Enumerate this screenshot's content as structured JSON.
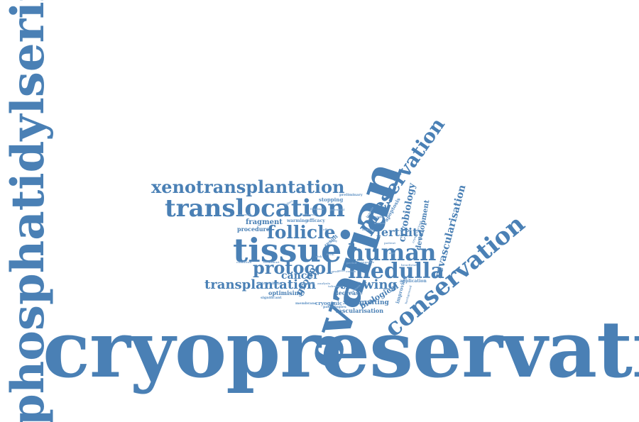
{
  "words": {
    "cryopreservation": "cryopreservation",
    "phosphatidylserine": "phosphatidylserine",
    "ovarian": "ovarian",
    "conservation": "conservation",
    "preservation": "preservation",
    "tissue": "tissue",
    "human": "human",
    "medulla": "medulla",
    "translocation": "translocation",
    "xenotransplantation": "xenotransplantation",
    "follicle": "follicle",
    "protocol": "protocol",
    "transplantation": "transplantation",
    "revascularisation": "revascularisation",
    "cryobiology": "cryobiology",
    "fertility": "fertility",
    "thawing": "thawing",
    "cancer": "cancer",
    "development": "development",
    "fragment": "fragment",
    "procedure": "procedure",
    "group": "group",
    "biological": "biological",
    "xenografting": "xenografting",
    "vascularisation": "vascularisation",
    "decrease": "decrease",
    "optimising": "optimising",
    "cryogenic": "cryogenic",
    "improving": "improving",
    "apoptosis": "apoptosis",
    "stopping": "stopping",
    "preliminary": "preliminary",
    "warming": "warming",
    "efficacy": "efficacy",
    "result": "result",
    "application": "application",
    "intracellular": "intracellular",
    "significant": "significant",
    "membrane": "membrane",
    "pathologies": "pathologies",
    "condition": "condition",
    "treatment": "treatment",
    "patient": "patient",
    "background": "background",
    "beneficial": "beneficial",
    "period": "period",
    "negative": "negative",
    "potential": "potential",
    "hypoxia": "hypoxia",
    "grafted": "grafted",
    "analysis": "analysis",
    "tolerance": "tolerance",
    "function": "function",
    "followed": "followed",
    "recovery": "recovery",
    "injury": "injury",
    "rate": "rate",
    "effect": "effect",
    "form": "form",
    "risk": "risk",
    "graft": "graft",
    "cell": "cell",
    "age": "age",
    "cortex": "cortex",
    "viable": "viable",
    "cryoprotectant": "cryoprotectant",
    "healthy": "healthy",
    "women": "women",
    "restore": "restore",
    "study": "study"
  },
  "colors": {
    "primary": "#4a80b5",
    "secondary": "#5b8fc2",
    "light": "#7aa3cc",
    "background": "#ffffff"
  }
}
